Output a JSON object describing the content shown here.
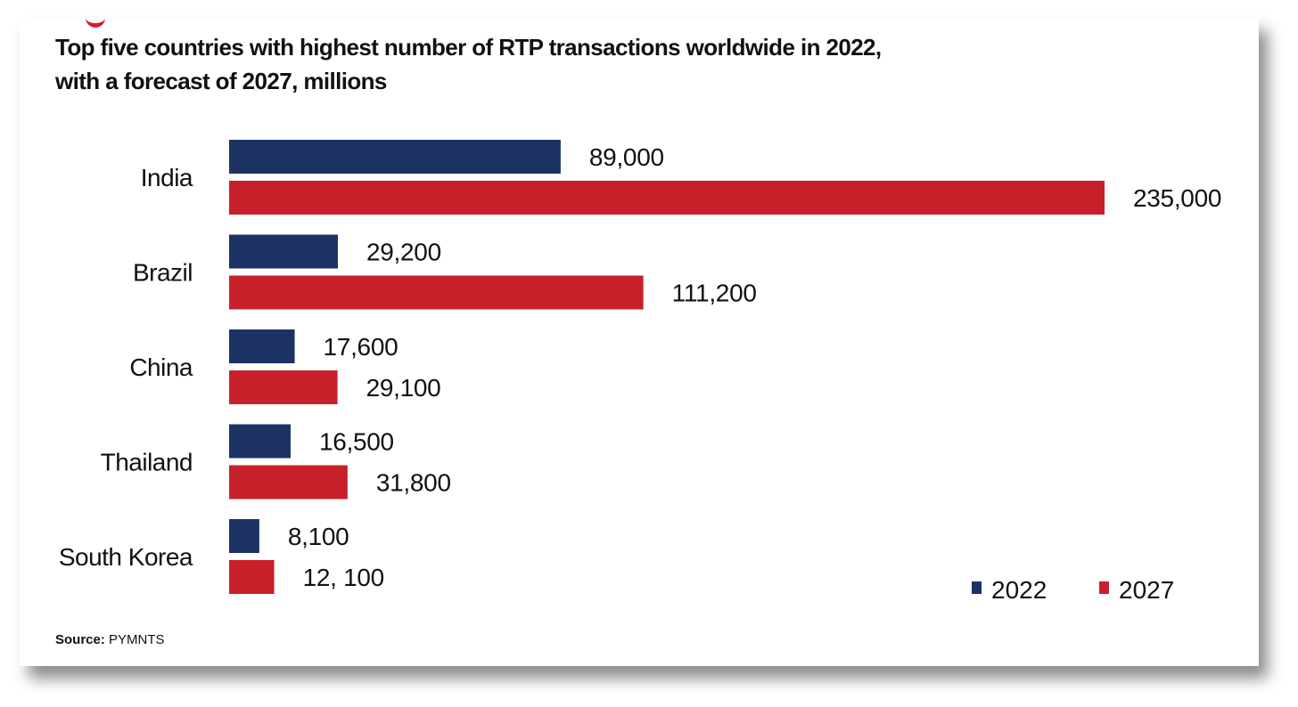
{
  "title_lines": [
    "Top five countries with highest number of RTP transactions worldwide in 2022,",
    "with a forecast of 2027, millions"
  ],
  "source": {
    "label": "Source:",
    "value": "PYMNTS"
  },
  "colors": {
    "series_2022": "#1c3263",
    "series_2027": "#c8202a"
  },
  "chart_data": {
    "type": "bar",
    "orientation": "horizontal",
    "title": "Top five countries with highest number of RTP transactions worldwide in 2022, with a forecast of 2027, millions",
    "categories": [
      "India",
      "Brazil",
      "China",
      "Thailand",
      "South Korea"
    ],
    "series": [
      {
        "name": "2022",
        "values": [
          89000,
          29200,
          17600,
          16500,
          8100
        ],
        "labels": [
          "89,000",
          "29,200",
          "17,600",
          "16,500",
          "8,100"
        ]
      },
      {
        "name": "2027",
        "values": [
          235000,
          111200,
          29100,
          31800,
          12100
        ],
        "labels": [
          "235,000",
          "111,200",
          "29,100",
          "31,800",
          "12, 100"
        ]
      }
    ],
    "xlim": [
      0,
      235000
    ],
    "grid": false,
    "legend_position": "bottom-right"
  }
}
